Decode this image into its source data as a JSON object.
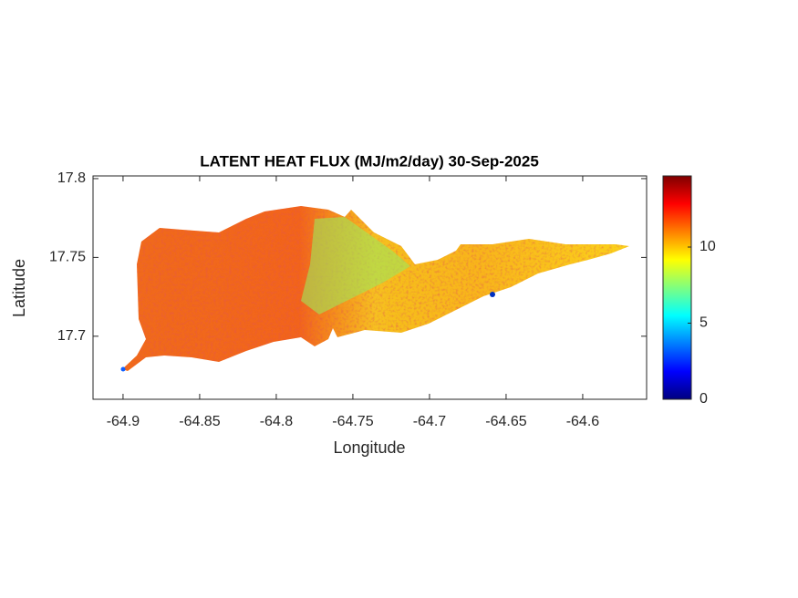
{
  "chart_data": {
    "type": "map",
    "title": "LATENT HEAT FLUX (MJ/m2/day) 30-Sep-2025",
    "xlabel": "Longitude",
    "ylabel": "Latitude",
    "xlim": [
      -64.9196,
      -64.5583
    ],
    "ylim": [
      17.66,
      17.8017
    ],
    "xticks": [
      -64.9,
      -64.85,
      -64.8,
      -64.75,
      -64.7,
      -64.65,
      -64.6
    ],
    "yticks": [
      17.7,
      17.75,
      17.8
    ],
    "clim": [
      0,
      14.67
    ],
    "cticks": [
      0,
      5,
      10
    ],
    "colormap": "jet"
  }
}
